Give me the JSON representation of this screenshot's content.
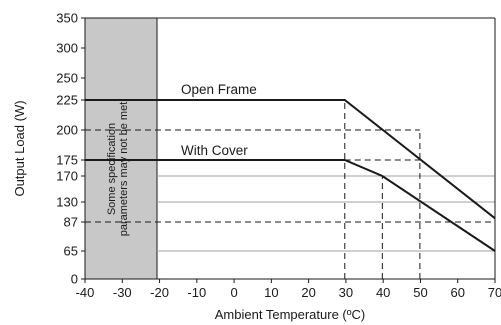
{
  "chart_data": {
    "type": "line",
    "title": "",
    "xlabel": "Ambient Temperature (ºC)",
    "ylabel": "Output Load (W)",
    "xlim": [
      -40,
      70
    ],
    "ylim": [
      0,
      350
    ],
    "x_ticks": [
      -40,
      -30,
      -20,
      -10,
      0,
      10,
      20,
      30,
      40,
      50,
      60,
      70
    ],
    "x_tick_labels": [
      "-40",
      "-30",
      "-20",
      "-10",
      "0",
      "10",
      "20",
      "30",
      "40",
      "50",
      "60",
      "70"
    ],
    "y_ticks": [
      0,
      65,
      87,
      130,
      170,
      175,
      200,
      225,
      250,
      300,
      350
    ],
    "y_tick_labels": [
      "0",
      "65",
      "87",
      "130",
      "170",
      "175",
      "200",
      "225",
      "250",
      "300",
      "350"
    ],
    "gridlines_y": [
      65,
      130,
      170
    ],
    "shaded_region": {
      "x_range": [
        -40,
        -20
      ],
      "note_lines": [
        "Some specification",
        "parameters may not be met"
      ]
    },
    "series": [
      {
        "name": "Open Frame",
        "x": [
          -40,
          30,
          70
        ],
        "y": [
          225,
          225,
          95
        ]
      },
      {
        "name": "With Cover",
        "x": [
          -40,
          30,
          40,
          70
        ],
        "y": [
          175,
          175,
          170,
          65
        ]
      }
    ],
    "reference_lines": [
      {
        "x": [
          -40,
          50
        ],
        "y": [
          200,
          200
        ]
      },
      {
        "x": [
          -40,
          70
        ],
        "y": [
          87,
          87
        ]
      },
      {
        "x": [
          30,
          50
        ],
        "y": [
          175,
          175
        ]
      },
      {
        "x": [
          30,
          30
        ],
        "y": [
          0,
          225
        ]
      },
      {
        "x": [
          40,
          40
        ],
        "y": [
          0,
          170
        ]
      },
      {
        "x": [
          50,
          50
        ],
        "y": [
          0,
          200
        ]
      }
    ],
    "legend": "none"
  }
}
